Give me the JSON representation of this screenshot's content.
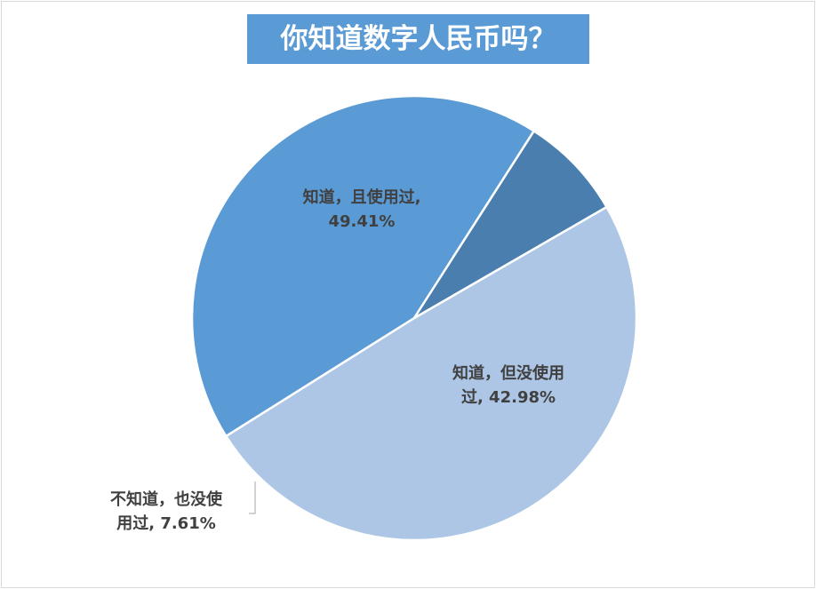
{
  "chart_data": {
    "type": "pie",
    "title": "你知道数字人民币吗？",
    "slices": [
      {
        "label": "知道，且使用过",
        "value": 49.41,
        "value_text": "49.41%",
        "color": "#adc6e5",
        "label_lines": [
          "知道，且使用过,",
          "49.41%"
        ]
      },
      {
        "label": "知道，但没使用过",
        "value": 42.98,
        "value_text": "42.98%",
        "color": "#5b9bd5",
        "label_lines": [
          "知道，但没使用",
          "过, 42.98%"
        ]
      },
      {
        "label": "不知道，也没使用过",
        "value": 7.61,
        "value_text": "7.61%",
        "color": "#4a7eae",
        "label_lines": [
          "不知道，也没使",
          "用过, 7.61%"
        ]
      }
    ],
    "start_angle_deg": 60,
    "direction": "clockwise",
    "legend": "none",
    "data_labels": "category-and-percent"
  }
}
